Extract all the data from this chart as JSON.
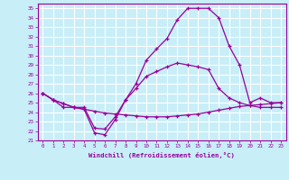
{
  "xlabel": "Windchill (Refroidissement éolien,°C)",
  "background_color": "#c8eef8",
  "grid_color": "#ffffff",
  "line_color": "#990099",
  "xlim": [
    -0.5,
    23.5
  ],
  "ylim": [
    21,
    35.5
  ],
  "xticks": [
    0,
    1,
    2,
    3,
    4,
    5,
    6,
    7,
    8,
    9,
    10,
    11,
    12,
    13,
    14,
    15,
    16,
    17,
    18,
    19,
    20,
    21,
    22,
    23
  ],
  "yticks": [
    21,
    22,
    23,
    24,
    25,
    26,
    27,
    28,
    29,
    30,
    31,
    32,
    33,
    34,
    35
  ],
  "line1_x": [
    0,
    1,
    2,
    3,
    4,
    5,
    6,
    7,
    8,
    9,
    10,
    11,
    12,
    13,
    14,
    15,
    16,
    17,
    18,
    19,
    20,
    21,
    22,
    23
  ],
  "line1_y": [
    26.0,
    25.3,
    24.5,
    24.5,
    24.5,
    22.3,
    22.2,
    23.5,
    25.3,
    27.0,
    29.5,
    30.7,
    31.8,
    33.8,
    35.0,
    35.0,
    35.0,
    34.0,
    31.0,
    29.0,
    25.0,
    25.5,
    25.0,
    25.0
  ],
  "line2_x": [
    0,
    1,
    2,
    3,
    4,
    5,
    6,
    7,
    8,
    9,
    10,
    11,
    12,
    13,
    14,
    15,
    16,
    17,
    18,
    19,
    20,
    21,
    22,
    23
  ],
  "line2_y": [
    26.0,
    25.3,
    24.9,
    24.5,
    24.3,
    24.1,
    23.9,
    23.8,
    23.7,
    23.6,
    23.5,
    23.5,
    23.5,
    23.6,
    23.7,
    23.8,
    24.0,
    24.2,
    24.4,
    24.6,
    24.7,
    24.8,
    24.9,
    25.0
  ],
  "line3_x": [
    0,
    1,
    2,
    3,
    4,
    5,
    6,
    7,
    8,
    9,
    10,
    11,
    12,
    13,
    14,
    15,
    16,
    17,
    18,
    19,
    20,
    21,
    22,
    23
  ],
  "line3_y": [
    26.0,
    25.3,
    24.9,
    24.5,
    24.3,
    21.8,
    21.6,
    23.2,
    25.3,
    26.5,
    27.8,
    28.3,
    28.8,
    29.2,
    29.0,
    28.8,
    28.5,
    26.5,
    25.5,
    25.0,
    24.7,
    24.5,
    24.5,
    24.5
  ]
}
